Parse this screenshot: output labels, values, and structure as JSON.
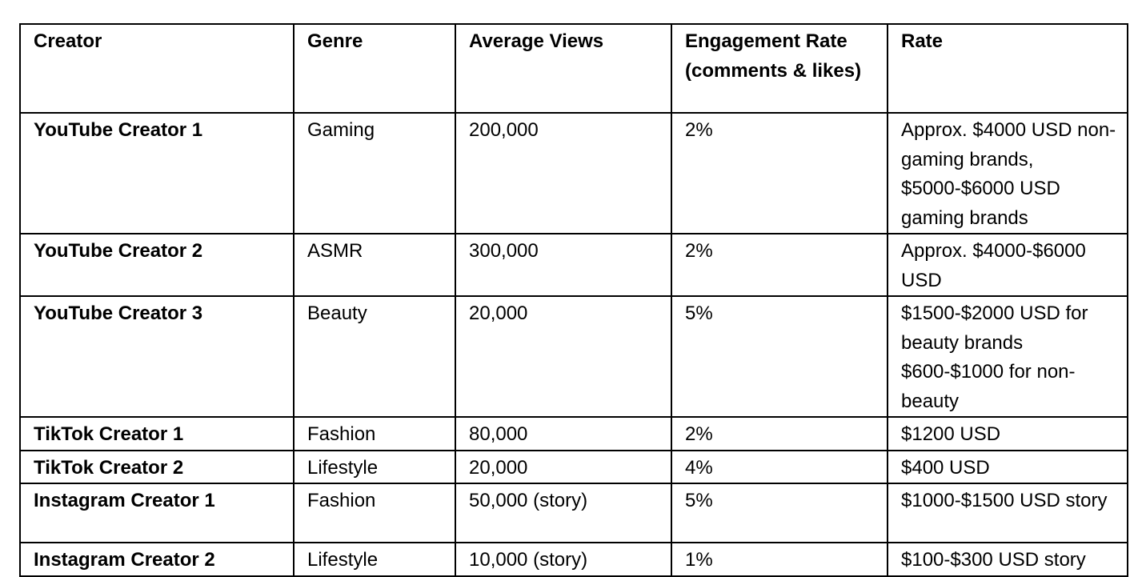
{
  "table": {
    "headers": [
      "Creator",
      "Genre",
      "Average Views",
      "Engagement Rate (comments & likes)",
      "Rate"
    ],
    "rows": [
      [
        "YouTube Creator 1",
        "Gaming",
        "200,000",
        "2%",
        "Approx. $4000 USD non-gaming brands, $5000-$6000 USD gaming brands"
      ],
      [
        "YouTube Creator 2",
        "ASMR",
        "300,000",
        "2%",
        "Approx. $4000-$6000 USD"
      ],
      [
        "YouTube Creator 3",
        "Beauty",
        "20,000",
        "5%",
        "$1500-$2000 USD for beauty brands $600-$1000 for non-beauty"
      ],
      [
        "TikTok Creator 1",
        "Fashion",
        "80,000",
        "2%",
        "$1200 USD"
      ],
      [
        "TikTok Creator 2",
        "Lifestyle",
        "20,000",
        "4%",
        "$400 USD"
      ],
      [
        "Instagram Creator 1",
        "Fashion",
        "50,000 (story)",
        "5%",
        "$1000-$1500 USD story"
      ],
      [
        "Instagram Creator 2",
        "Lifestyle",
        "10,000 (story)",
        "1%",
        "$100-$300 USD story"
      ]
    ]
  }
}
